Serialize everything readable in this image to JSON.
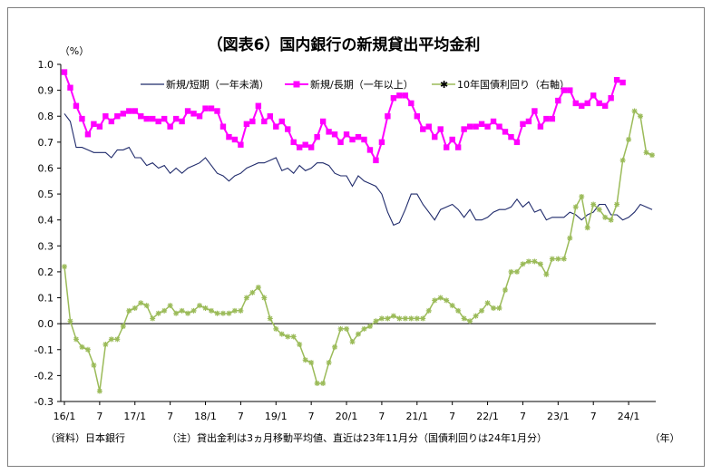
{
  "chart_data": {
    "type": "line",
    "title": "（図表6）国内銀行の新規貸出平均金利",
    "y_unit": "（%）",
    "ylim": [
      -0.3,
      1.0
    ],
    "y_ticks": [
      "1.0",
      "0.9",
      "0.8",
      "0.7",
      "0.6",
      "0.5",
      "0.4",
      "0.3",
      "0.2",
      "0.1",
      "0.0",
      "-0.1",
      "-0.2",
      "-0.3"
    ],
    "x_ticks": [
      "16/1",
      "7",
      "17/1",
      "7",
      "18/1",
      "7",
      "19/1",
      "7",
      "20/1",
      "7",
      "21/1",
      "7",
      "22/1",
      "7",
      "23/1",
      "7",
      "24/1"
    ],
    "x_unit": "（年）",
    "grid": false,
    "legend_position": "top",
    "series": [
      {
        "name": "新規/短期（一年未満）",
        "color": "#1f2a6b",
        "marker": "none",
        "values": [
          0.81,
          0.78,
          0.68,
          0.68,
          0.67,
          0.66,
          0.66,
          0.66,
          0.64,
          0.67,
          0.67,
          0.68,
          0.64,
          0.64,
          0.61,
          0.62,
          0.6,
          0.61,
          0.58,
          0.6,
          0.58,
          0.6,
          0.61,
          0.62,
          0.64,
          0.61,
          0.58,
          0.57,
          0.55,
          0.57,
          0.58,
          0.6,
          0.61,
          0.62,
          0.62,
          0.63,
          0.64,
          0.59,
          0.6,
          0.58,
          0.61,
          0.59,
          0.6,
          0.62,
          0.62,
          0.61,
          0.58,
          0.57,
          0.57,
          0.53,
          0.57,
          0.55,
          0.54,
          0.53,
          0.5,
          0.43,
          0.38,
          0.39,
          0.44,
          0.5,
          0.5,
          0.46,
          0.43,
          0.4,
          0.44,
          0.45,
          0.46,
          0.44,
          0.41,
          0.44,
          0.4,
          0.4,
          0.41,
          0.43,
          0.44,
          0.44,
          0.45,
          0.48,
          0.45,
          0.47,
          0.43,
          0.44,
          0.4,
          0.41,
          0.41,
          0.41,
          0.43,
          0.42,
          0.4,
          0.42,
          0.43,
          0.46,
          0.46,
          0.42,
          0.42,
          0.4,
          0.41,
          0.43,
          0.46,
          0.45,
          0.44
        ]
      },
      {
        "name": "新規/長期（一年以上）",
        "color": "#ff00ff",
        "marker": "square",
        "values": [
          0.97,
          0.91,
          0.84,
          0.79,
          0.73,
          0.77,
          0.76,
          0.8,
          0.78,
          0.8,
          0.81,
          0.82,
          0.82,
          0.8,
          0.79,
          0.79,
          0.78,
          0.79,
          0.76,
          0.79,
          0.78,
          0.82,
          0.81,
          0.8,
          0.83,
          0.83,
          0.82,
          0.76,
          0.72,
          0.71,
          0.69,
          0.77,
          0.78,
          0.84,
          0.78,
          0.8,
          0.76,
          0.78,
          0.75,
          0.7,
          0.68,
          0.69,
          0.68,
          0.72,
          0.78,
          0.74,
          0.73,
          0.7,
          0.73,
          0.71,
          0.72,
          0.71,
          0.67,
          0.63,
          0.7,
          0.8,
          0.87,
          0.88,
          0.88,
          0.85,
          0.8,
          0.75,
          0.76,
          0.72,
          0.75,
          0.68,
          0.71,
          0.68,
          0.75,
          0.76,
          0.76,
          0.77,
          0.76,
          0.78,
          0.76,
          0.74,
          0.72,
          0.7,
          0.77,
          0.78,
          0.82,
          0.76,
          0.79,
          0.79,
          0.86,
          0.9,
          0.9,
          0.85,
          0.84,
          0.85,
          0.88,
          0.85,
          0.84,
          0.87,
          0.94,
          0.93
        ]
      },
      {
        "name": "10年国債利回り（右軸）",
        "color": "#9bbb59",
        "marker": "star",
        "values": [
          0.22,
          0.01,
          -0.06,
          -0.09,
          -0.1,
          -0.16,
          -0.26,
          -0.08,
          -0.06,
          -0.06,
          -0.01,
          0.05,
          0.06,
          0.08,
          0.07,
          0.02,
          0.04,
          0.05,
          0.07,
          0.04,
          0.05,
          0.04,
          0.05,
          0.07,
          0.06,
          0.05,
          0.04,
          0.04,
          0.04,
          0.05,
          0.05,
          0.1,
          0.12,
          0.14,
          0.1,
          0.02,
          -0.02,
          -0.04,
          -0.05,
          -0.05,
          -0.08,
          -0.14,
          -0.15,
          -0.23,
          -0.23,
          -0.15,
          -0.09,
          -0.02,
          -0.02,
          -0.07,
          -0.04,
          -0.02,
          -0.01,
          0.01,
          0.02,
          0.02,
          0.03,
          0.02,
          0.02,
          0.02,
          0.02,
          0.02,
          0.05,
          0.09,
          0.1,
          0.09,
          0.07,
          0.05,
          0.02,
          0.01,
          0.03,
          0.05,
          0.08,
          0.06,
          0.06,
          0.13,
          0.2,
          0.2,
          0.23,
          0.24,
          0.24,
          0.23,
          0.19,
          0.25,
          0.25,
          0.25,
          0.33,
          0.45,
          0.49,
          0.37,
          0.46,
          0.44,
          0.41,
          0.4,
          0.46,
          0.63,
          0.71,
          0.82,
          0.8,
          0.66,
          0.65
        ]
      }
    ]
  },
  "footnotes": {
    "source": "（資料）日本銀行",
    "note": "（注）貸出金利は3ヵ月移動平均値、直近は23年11月分（国債利回りは24年1月分）"
  }
}
